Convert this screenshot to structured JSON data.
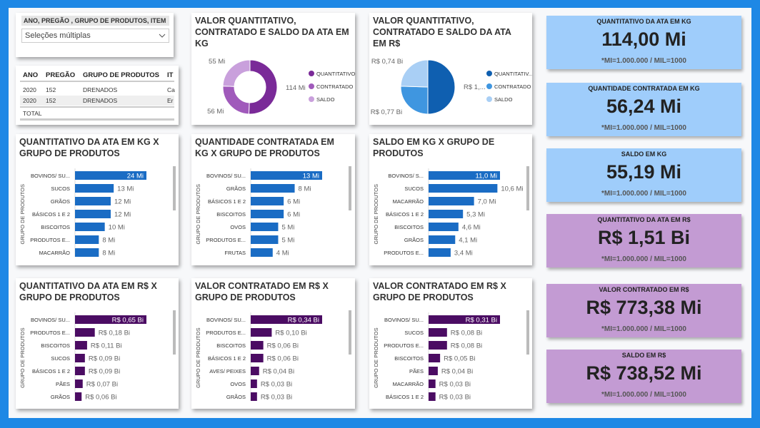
{
  "slicer": {
    "title": "ANO, PREGÃO , GRUPO DE PRODUTOS, ITEM",
    "placeholder": "Seleções múltiplas"
  },
  "table": {
    "columns": [
      "ANO",
      "PREGÃO",
      "GRUPO DE PRODUTOS",
      "IT"
    ],
    "rows": [
      [
        2020,
        152,
        "DRENADOS",
        "Ca"
      ],
      [
        2020,
        152,
        "DRENADOS",
        "Er"
      ]
    ],
    "total": "TOTAL"
  },
  "chart_data": [
    {
      "type": "donut",
      "title": "VALOR QUANTITATIVO, CONTRATADO E SALDO DA ATA EM KG",
      "categories": [
        "QUANTITATIVO",
        "CONTRATADO",
        "SALDO"
      ],
      "values": [
        114,
        56,
        55
      ],
      "value_labels": [
        "114 Mi",
        "56 Mi",
        "55 Mi"
      ],
      "colors": [
        "#7a2a98",
        "#a05abb",
        "#c9a0dc"
      ]
    },
    {
      "type": "pie",
      "title": "VALOR QUANTITATIVO, CONTRATADO E SALDO DA ATA EM R$",
      "categories": [
        "QUANTITATIV...",
        "CONTRATADO",
        "SALDO"
      ],
      "values": [
        1.51,
        0.77,
        0.74
      ],
      "value_labels": [
        "R$ 1,...",
        "R$ 0,77 Bi",
        "R$ 0,74 Bi"
      ],
      "colors": [
        "#0f5fb0",
        "#3f96e0",
        "#a9cff5"
      ]
    },
    {
      "type": "bar",
      "title": "QUANTITATIVO DA ATA EM KG X GRUPO DE PRODUTOS",
      "axis_label": "GRUPO DE PRODUTOS",
      "categories": [
        "BOVINOS/ SU...",
        "SUCOS",
        "GRÃOS",
        "BÁSICOS 1 E 2",
        "BISCOITOS",
        "PRODUTOS E...",
        "MACARRÃO"
      ],
      "values": [
        24,
        13,
        12,
        12,
        10,
        8,
        8
      ],
      "value_labels": [
        "24 Mi",
        "13 Mi",
        "12 Mi",
        "12 Mi",
        "10 Mi",
        "8 Mi",
        "8 Mi"
      ],
      "color": "#1a6cc4"
    },
    {
      "type": "bar",
      "title": "QUANTIDADE CONTRATADA EM KG X GRUPO DE PRODUTOS",
      "axis_label": "GRUPO DE PRODUTOS",
      "categories": [
        "BOVINOS/ SU...",
        "GRÃOS",
        "BÁSICOS 1 E 2",
        "BISCOITOS",
        "OVOS",
        "PRODUTOS E...",
        "FRUTAS"
      ],
      "values": [
        13,
        8,
        6,
        6,
        5,
        5,
        4
      ],
      "value_labels": [
        "13 Mi",
        "8 Mi",
        "6 Mi",
        "6 Mi",
        "5 Mi",
        "5 Mi",
        "4 Mi"
      ],
      "color": "#1a6cc4"
    },
    {
      "type": "bar",
      "title": "SALDO EM KG X GRUPO DE PRODUTOS",
      "axis_label": "GRUPO DE PRODUTOS",
      "categories": [
        "BOVINOS/ S...",
        "SUCOS",
        "MACARRÃO",
        "BÁSICOS 1 E 2",
        "BISCOITOS",
        "GRÃOS",
        "PRODUTOS E..."
      ],
      "values": [
        11.0,
        10.6,
        7.0,
        5.3,
        4.6,
        4.1,
        3.4
      ],
      "value_labels": [
        "11,0 Mi",
        "10,6 Mi",
        "7,0 Mi",
        "5,3 Mi",
        "4,6 Mi",
        "4,1 Mi",
        "3,4 Mi"
      ],
      "color": "#1a6cc4"
    },
    {
      "type": "bar",
      "title": "QUANTITATIVO DA ATA EM R$ X GRUPO DE PRODUTOS",
      "axis_label": "GRUPO DE PRODUTOS",
      "categories": [
        "BOVINOS/ SU...",
        "PRODUTOS E...",
        "BISCOITOS",
        "SUCOS",
        "BÁSICOS 1 E 2",
        "PÃES",
        "GRÃOS"
      ],
      "values": [
        0.65,
        0.18,
        0.11,
        0.09,
        0.09,
        0.07,
        0.06
      ],
      "value_labels": [
        "R$ 0,65 Bi",
        "R$ 0,18 Bi",
        "R$ 0,11 Bi",
        "R$ 0,09 Bi",
        "R$ 0,09 Bi",
        "R$ 0,07 Bi",
        "R$ 0,06 Bi"
      ],
      "color": "#4b0c63"
    },
    {
      "type": "bar",
      "title": "VALOR CONTRATADO EM R$ X GRUPO DE PRODUTOS",
      "axis_label": "GRUPO DE PRODUTOS",
      "categories": [
        "BOVINOS/ SU...",
        "PRODUTOS E...",
        "BISCOITOS",
        "BÁSICOS 1 E 2",
        "AVES/ PEIXES",
        "OVOS",
        "GRÃOS"
      ],
      "values": [
        0.34,
        0.1,
        0.06,
        0.06,
        0.04,
        0.03,
        0.03
      ],
      "value_labels": [
        "R$ 0,34 Bi",
        "R$ 0,10 Bi",
        "R$ 0,06 Bi",
        "R$ 0,06 Bi",
        "R$ 0,04 Bi",
        "R$ 0,03 Bi",
        "R$ 0,03 Bi"
      ],
      "color": "#4b0c63"
    },
    {
      "type": "bar",
      "title": "VALOR CONTRATADO EM R$ X GRUPO DE PRODUTOS",
      "axis_label": "GRUPO DE PRODUTOS",
      "categories": [
        "BOVINOS/ SU...",
        "SUCOS",
        "PRODUTOS E...",
        "BISCOITOS",
        "PÃES",
        "MACARRÃO",
        "BÁSICOS 1 E 2"
      ],
      "values": [
        0.31,
        0.08,
        0.08,
        0.05,
        0.04,
        0.03,
        0.03
      ],
      "value_labels": [
        "R$ 0,31 Bi",
        "R$ 0,08 Bi",
        "R$ 0,08 Bi",
        "R$ 0,05 Bi",
        "R$ 0,04 Bi",
        "R$ 0,03 Bi",
        "R$ 0,03 Bi"
      ],
      "color": "#4b0c63"
    }
  ],
  "cards": [
    {
      "title": "QUANTITATIVO DA ATA EM KG",
      "value": "114,00 Mi",
      "note": "*MI=1.000.000 / MIL=1000",
      "color": "#9fcdfb"
    },
    {
      "title": "QUANTIDADE CONTRATADA EM KG",
      "value": "56,24 Mi",
      "note": "*MI=1.000.000 / MIL=1000",
      "color": "#9fcdfb"
    },
    {
      "title": "SALDO EM KG",
      "value": "55,19 Mi",
      "note": "*MI=1.000.000 / MIL=1000",
      "color": "#9fcdfb"
    },
    {
      "title": "QUANTITATIVO DA ATA EM R$",
      "value": "R$ 1,51 Bi",
      "note": "*MI=1.000.000 / MIL=1000",
      "color": "#c39bd3"
    },
    {
      "title": "VALOR CONTRATADO EM R$",
      "value": "R$ 773,38 Mi",
      "note": "*MI=1.000.000 / MIL=1000",
      "color": "#c39bd3"
    },
    {
      "title": "SALDO EM R$",
      "value": "R$ 738,52 Mi",
      "note": "*MI=1.000.000 / MIL=1000",
      "color": "#c39bd3"
    }
  ]
}
